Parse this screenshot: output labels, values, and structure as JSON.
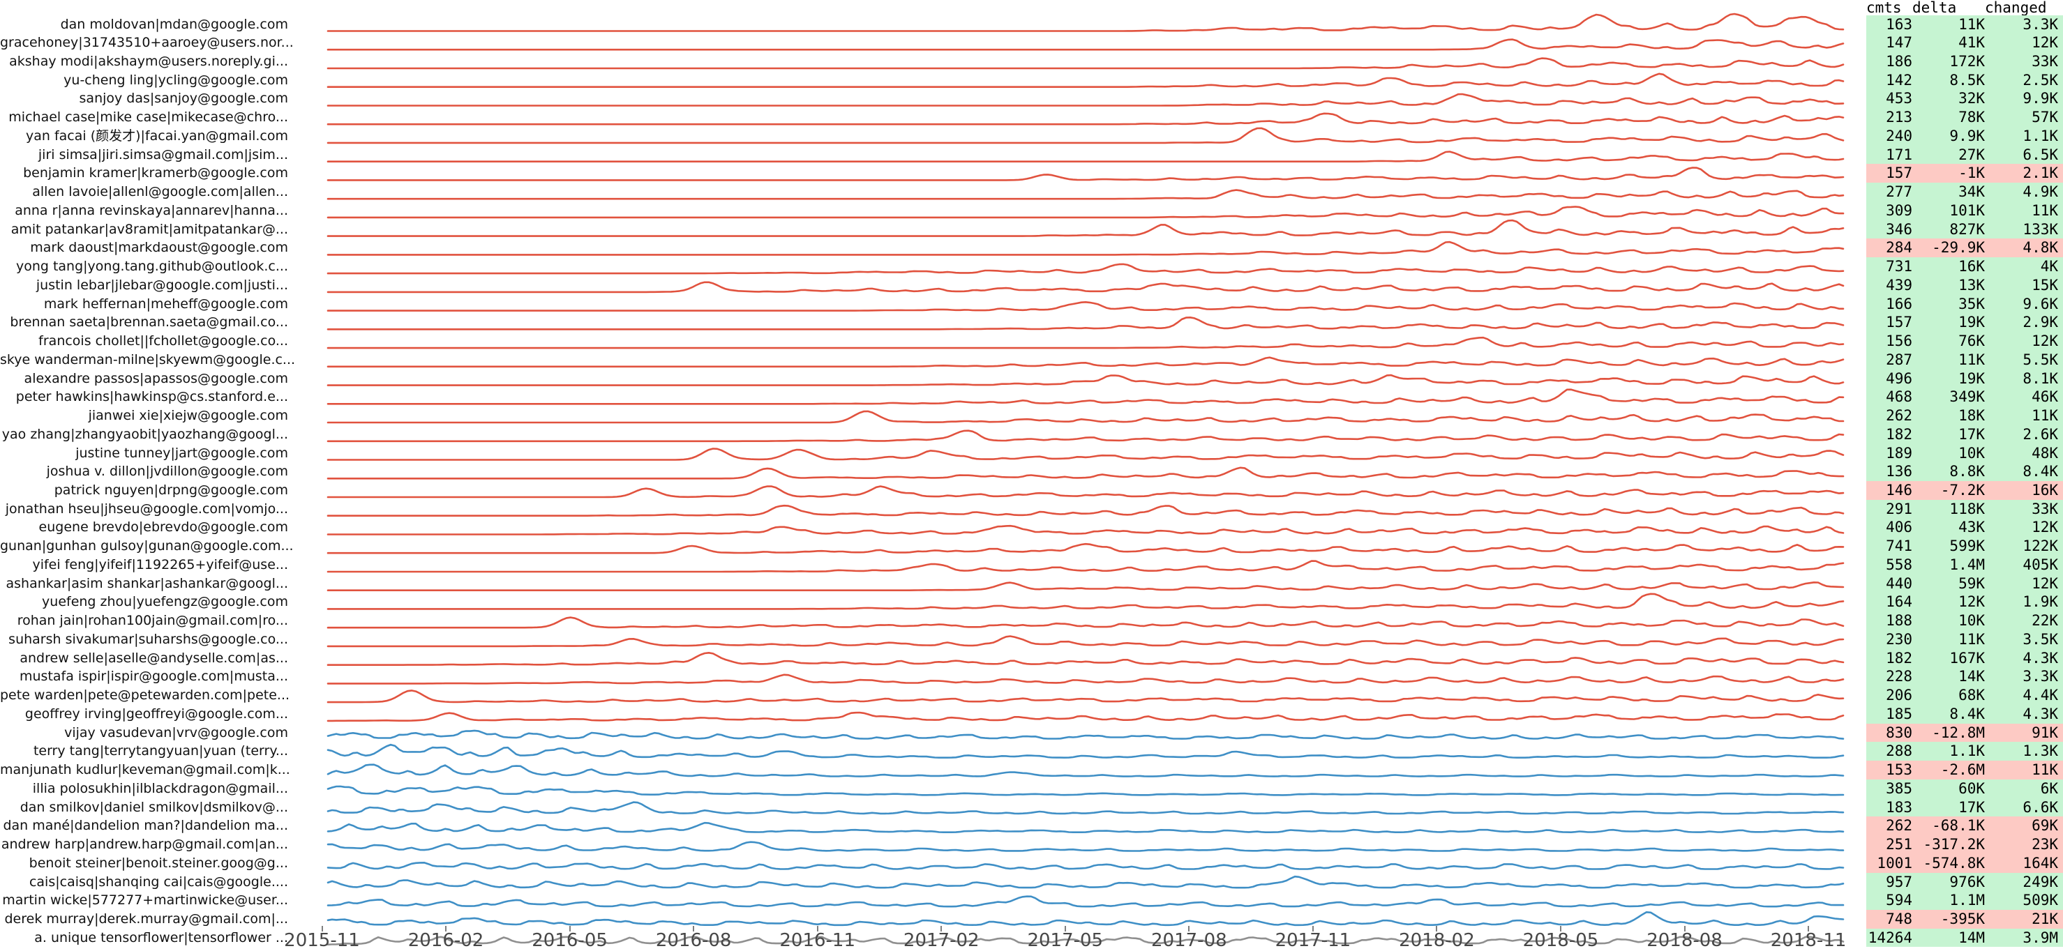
{
  "figure": {
    "description": "Per-contributor commit activity sparklines with totals table",
    "colors": {
      "red_line": "#e1523e",
      "blue_line": "#3f8fc6",
      "gray_line": "#8f8f8f",
      "positive_row_bg": "#c6f4d2",
      "negative_row_bg": "#fdcac4",
      "axis_text": "#474747",
      "name_text": "#111111"
    }
  },
  "chart_data": {
    "type": "ridgeline",
    "title": "",
    "xlabel": "",
    "ylabel": "",
    "legend": "none",
    "grid": false,
    "x_tick_labels": [
      "2015-11",
      "2016-02",
      "2016-05",
      "2016-08",
      "2016-11",
      "2017-02",
      "2017-05",
      "2017-08",
      "2017-11",
      "2018-02",
      "2018-05",
      "2018-08",
      "2018-11"
    ],
    "columns": [
      "cmts",
      "delta",
      "changed"
    ],
    "series": [
      {
        "name": "dan moldovan|mdan@google.com",
        "cmts": "163",
        "delta": "11K",
        "changed": "3.3K",
        "negative": false,
        "line": "red",
        "start": 0.52,
        "amp": 15,
        "late": 0,
        "spikes": [
          [
            0.84,
            14
          ],
          [
            0.925,
            16
          ],
          [
            0.97,
            12
          ]
        ]
      },
      {
        "name": "gracehoney|31743510+aaroey@users.nor...",
        "cmts": "147",
        "delta": "41K",
        "changed": "12K",
        "negative": false,
        "line": "red",
        "start": 0.73,
        "amp": 14,
        "late": 0,
        "spikes": [
          [
            0.78,
            12
          ],
          [
            0.92,
            10
          ]
        ]
      },
      {
        "name": "akshay modi|akshaym@users.noreply.gi...",
        "cmts": "186",
        "delta": "172K",
        "changed": "33K",
        "negative": false,
        "line": "red",
        "start": 0.64,
        "amp": 13,
        "late": 0,
        "spikes": [
          [
            0.8,
            10
          ]
        ]
      },
      {
        "name": "yu-cheng ling|ycling@google.com",
        "cmts": "142",
        "delta": "8.5K",
        "changed": "2.5K",
        "negative": false,
        "line": "red",
        "start": 0.52,
        "amp": 12,
        "late": 0,
        "spikes": [
          [
            0.7,
            10
          ],
          [
            0.88,
            12
          ]
        ]
      },
      {
        "name": "sanjoy das|sanjoy@google.com",
        "cmts": "453",
        "delta": "32K",
        "changed": "9.9K",
        "negative": false,
        "line": "red",
        "start": 0.55,
        "amp": 14,
        "late": 0,
        "spikes": [
          [
            0.75,
            12
          ]
        ]
      },
      {
        "name": "michael case|mike case|mikecase@chro...",
        "cmts": "213",
        "delta": "78K",
        "changed": "57K",
        "negative": false,
        "line": "red",
        "start": 0.52,
        "amp": 13,
        "late": 0,
        "spikes": [
          [
            0.66,
            12
          ]
        ]
      },
      {
        "name": "yan facai (颜发才)|facai.yan@gmail.com",
        "cmts": "240",
        "delta": "9.9K",
        "changed": "1.1K",
        "negative": false,
        "line": "red",
        "start": 0.55,
        "amp": 13,
        "late": 0,
        "spikes": [
          [
            0.615,
            20
          ]
        ]
      },
      {
        "name": "jiri simsa|jiri.simsa@gmail.com|jsim...",
        "cmts": "171",
        "delta": "27K",
        "changed": "6.5K",
        "negative": false,
        "line": "red",
        "start": 0.68,
        "amp": 13,
        "late": 0,
        "spikes": [
          [
            0.74,
            10
          ]
        ]
      },
      {
        "name": "benjamin kramer|kramerb@google.com",
        "cmts": "157",
        "delta": "-1K",
        "changed": "2.1K",
        "negative": true,
        "line": "red",
        "start": 0.47,
        "amp": 10,
        "late": 0,
        "spikes": [
          [
            0.474,
            8
          ],
          [
            0.9,
            12
          ]
        ]
      },
      {
        "name": "allen lavoie|allenl@google.com|allen...",
        "cmts": "277",
        "delta": "34K",
        "changed": "4.9K",
        "negative": false,
        "line": "red",
        "start": 0.52,
        "amp": 13,
        "late": 0,
        "spikes": [
          [
            0.6,
            10
          ]
        ]
      },
      {
        "name": "anna r|anna revinskaya|annarev|hanna...",
        "cmts": "309",
        "delta": "101K",
        "changed": "11K",
        "negative": false,
        "line": "red",
        "start": 0.54,
        "amp": 13,
        "late": 0,
        "spikes": [
          [
            0.82,
            12
          ]
        ]
      },
      {
        "name": "amit patankar|av8ramit|amitpatankar@...",
        "cmts": "346",
        "delta": "827K",
        "changed": "133K",
        "negative": false,
        "line": "red",
        "start": 0.45,
        "amp": 14,
        "late": 0,
        "spikes": [
          [
            0.55,
            12
          ],
          [
            0.78,
            14
          ]
        ]
      },
      {
        "name": "mark daoust|markdaoust@google.com",
        "cmts": "284",
        "delta": "-29.9K",
        "changed": "4.8K",
        "negative": true,
        "line": "red",
        "start": 0.52,
        "amp": 11,
        "late": 0,
        "spikes": [
          [
            0.74,
            16
          ]
        ]
      },
      {
        "name": "yong tang|yong.tang.github@outlook.c...",
        "cmts": "731",
        "delta": "16K",
        "changed": "4K",
        "negative": false,
        "line": "red",
        "start": 0.24,
        "amp": 11,
        "late": 0,
        "spikes": [
          [
            0.52,
            10
          ]
        ]
      },
      {
        "name": "justin lebar|jlebar@google.com|justi...",
        "cmts": "439",
        "delta": "13K",
        "changed": "15K",
        "negative": false,
        "line": "red",
        "start": 0.21,
        "amp": 13,
        "late": 0,
        "spikes": [
          [
            0.25,
            14
          ],
          [
            0.55,
            10
          ]
        ]
      },
      {
        "name": "mark heffernan|meheff@google.com",
        "cmts": "166",
        "delta": "35K",
        "changed": "9.6K",
        "negative": false,
        "line": "red",
        "start": 0.34,
        "amp": 12,
        "late": 0,
        "spikes": [
          [
            0.5,
            10
          ]
        ]
      },
      {
        "name": "brennan saeta|brennan.saeta@gmail.co...",
        "cmts": "157",
        "delta": "19K",
        "changed": "2.9K",
        "negative": false,
        "line": "red",
        "start": 0.4,
        "amp": 12,
        "late": 0,
        "spikes": [
          [
            0.57,
            14
          ]
        ]
      },
      {
        "name": "francois chollet||fchollet@google.co...",
        "cmts": "156",
        "delta": "76K",
        "changed": "12K",
        "negative": false,
        "line": "red",
        "start": 0.52,
        "amp": 12,
        "late": 0,
        "spikes": [
          [
            0.76,
            12
          ]
        ]
      },
      {
        "name": "skye wanderman-milne|skyewm@google.c...",
        "cmts": "287",
        "delta": "11K",
        "changed": "5.5K",
        "negative": false,
        "line": "red",
        "start": 0.36,
        "amp": 13,
        "late": 0,
        "spikes": [
          [
            0.62,
            10
          ]
        ]
      },
      {
        "name": "alexandre passos|apassos@google.com",
        "cmts": "496",
        "delta": "19K",
        "changed": "8.1K",
        "negative": false,
        "line": "red",
        "start": 0.36,
        "amp": 14,
        "late": 0,
        "spikes": [
          [
            0.52,
            12
          ],
          [
            0.7,
            10
          ]
        ]
      },
      {
        "name": "peter hawkins|hawkinsp@cs.stanford.e...",
        "cmts": "468",
        "delta": "349K",
        "changed": "46K",
        "negative": false,
        "line": "red",
        "start": 0.32,
        "amp": 13,
        "late": 0,
        "spikes": [
          [
            0.82,
            16
          ]
        ]
      },
      {
        "name": "jianwei xie|xiejw@google.com",
        "cmts": "262",
        "delta": "18K",
        "changed": "11K",
        "negative": false,
        "line": "red",
        "start": 0.33,
        "amp": 13,
        "late": 0,
        "spikes": [
          [
            0.355,
            16
          ]
        ]
      },
      {
        "name": "yao zhang|zhangyaobit|yaozhang@googl...",
        "cmts": "182",
        "delta": "17K",
        "changed": "2.6K",
        "negative": false,
        "line": "red",
        "start": 0.27,
        "amp": 11,
        "late": 0,
        "spikes": [
          [
            0.42,
            12
          ]
        ]
      },
      {
        "name": "justine tunney|jart@google.com",
        "cmts": "189",
        "delta": "10K",
        "changed": "48K",
        "negative": false,
        "line": "red",
        "start": 0.24,
        "amp": 13,
        "late": 0,
        "spikes": [
          [
            0.255,
            16
          ],
          [
            0.31,
            14
          ],
          [
            0.4,
            10
          ]
        ]
      },
      {
        "name": "joshua v. dillon|jvdillon@google.com",
        "cmts": "136",
        "delta": "8.8K",
        "changed": "8.4K",
        "negative": false,
        "line": "red",
        "start": 0.26,
        "amp": 12,
        "late": 0,
        "spikes": [
          [
            0.29,
            14
          ],
          [
            0.6,
            10
          ]
        ]
      },
      {
        "name": "patrick nguyen|drpng@google.com",
        "cmts": "146",
        "delta": "-7.2K",
        "changed": "16K",
        "negative": true,
        "line": "red",
        "start": 0.19,
        "amp": 12,
        "late": 0,
        "spikes": [
          [
            0.21,
            12
          ],
          [
            0.29,
            14
          ],
          [
            0.365,
            12
          ]
        ]
      },
      {
        "name": "jonathan hseu|jhseu@google.com|vomjo...",
        "cmts": "291",
        "delta": "118K",
        "changed": "33K",
        "negative": false,
        "line": "red",
        "start": 0.155,
        "amp": 12,
        "late": 0,
        "spikes": [
          [
            0.3,
            12
          ],
          [
            0.55,
            10
          ]
        ]
      },
      {
        "name": "eugene brevdo|ebrevdo@google.com",
        "cmts": "406",
        "delta": "43K",
        "changed": "12K",
        "negative": false,
        "line": "red",
        "start": 0.135,
        "amp": 12,
        "late": 0,
        "spikes": [
          [
            0.3,
            10
          ],
          [
            0.45,
            10
          ]
        ]
      },
      {
        "name": "gunan|gunhan gulsoy|gunan@google.com...",
        "cmts": "741",
        "delta": "599K",
        "changed": "122K",
        "negative": false,
        "line": "red",
        "start": 0.22,
        "amp": 13,
        "late": 0,
        "spikes": [
          [
            0.24,
            10
          ],
          [
            0.5,
            12
          ]
        ]
      },
      {
        "name": "yifei feng|yifeif|1192265+yifeif@use...",
        "cmts": "558",
        "delta": "1.4M",
        "changed": "405K",
        "negative": false,
        "line": "red",
        "start": 0.26,
        "amp": 13,
        "late": 0,
        "spikes": [
          [
            0.4,
            10
          ],
          [
            0.65,
            12
          ]
        ]
      },
      {
        "name": "ashankar|asim shankar|ashankar@googl...",
        "cmts": "440",
        "delta": "59K",
        "changed": "12K",
        "negative": false,
        "line": "red",
        "start": 0.38,
        "amp": 12,
        "late": 0,
        "spikes": [
          [
            0.45,
            10
          ]
        ]
      },
      {
        "name": "yuefeng zhou|yuefengz@google.com",
        "cmts": "164",
        "delta": "12K",
        "changed": "1.9K",
        "negative": false,
        "line": "red",
        "start": 0.3,
        "amp": 11,
        "late": 0,
        "spikes": [
          [
            0.875,
            16
          ]
        ]
      },
      {
        "name": "rohan jain|rohan100jain@gmail.com|ro...",
        "cmts": "188",
        "delta": "10K",
        "changed": "22K",
        "negative": false,
        "line": "red",
        "start": 0.13,
        "amp": 12,
        "late": 0,
        "spikes": [
          [
            0.16,
            14
          ]
        ]
      },
      {
        "name": "suharsh sivakumar|suharshs@google.co...",
        "cmts": "230",
        "delta": "11K",
        "changed": "3.5K",
        "negative": false,
        "line": "red",
        "start": 0.12,
        "amp": 12,
        "late": 0,
        "spikes": [
          [
            0.2,
            10
          ],
          [
            0.45,
            10
          ]
        ]
      },
      {
        "name": "andrew selle|aselle@andyselle.com|as...",
        "cmts": "182",
        "delta": "167K",
        "changed": "4.3K",
        "negative": false,
        "line": "red",
        "start": 0.05,
        "amp": 12,
        "late": 0,
        "spikes": [
          [
            0.25,
            16
          ]
        ]
      },
      {
        "name": "mustafa ispir|ispir@google.com|musta...",
        "cmts": "228",
        "delta": "14K",
        "changed": "3.3K",
        "negative": false,
        "line": "red",
        "start": 0.06,
        "amp": 11,
        "late": 0,
        "spikes": [
          [
            0.3,
            10
          ]
        ]
      },
      {
        "name": "pete warden|pete@petewarden.com|pete...",
        "cmts": "206",
        "delta": "68K",
        "changed": "4.4K",
        "negative": false,
        "line": "red",
        "start": 0.01,
        "amp": 11,
        "late": 0,
        "spikes": [
          [
            0.055,
            16
          ]
        ]
      },
      {
        "name": "geoffrey irving|geoffreyi@google.com...",
        "cmts": "185",
        "delta": "8.4K",
        "changed": "4.3K",
        "negative": false,
        "line": "red",
        "start": 0.0,
        "amp": 11,
        "late": 0,
        "spikes": [
          [
            0.08,
            10
          ],
          [
            0.35,
            10
          ]
        ]
      },
      {
        "name": "vijay vasudevan|vrv@google.com",
        "cmts": "830",
        "delta": "-12.8M",
        "changed": "91K",
        "negative": true,
        "line": "blue",
        "start": 0,
        "amp": 14,
        "late": 0.5,
        "spikes": []
      },
      {
        "name": "terry tang|terrytangyuan|yuan (terry...",
        "cmts": "288",
        "delta": "1.1K",
        "changed": "1.3K",
        "negative": false,
        "line": "blue",
        "start": 0,
        "amp": 20,
        "late": 0.22,
        "spikes": [
          [
            0.3,
            8
          ],
          [
            0.6,
            8
          ]
        ]
      },
      {
        "name": "manjunath kudlur|keveman@gmail.com|k...",
        "cmts": "153",
        "delta": "-2.6M",
        "changed": "11K",
        "negative": true,
        "line": "blue",
        "start": 0,
        "amp": 18,
        "late": 0.16,
        "spikes": [
          [
            0.45,
            6
          ]
        ]
      },
      {
        "name": "illia polosukhin|ilblackdragon@gmail...",
        "cmts": "385",
        "delta": "60K",
        "changed": "6K",
        "negative": false,
        "line": "blue",
        "start": 0,
        "amp": 16,
        "late": 0.2,
        "spikes": []
      },
      {
        "name": "dan smilkov|daniel smilkov|dsmilkov@...",
        "cmts": "183",
        "delta": "17K",
        "changed": "6.6K",
        "negative": false,
        "line": "blue",
        "start": 0,
        "amp": 14,
        "late": 0.28,
        "spikes": [
          [
            0.2,
            10
          ]
        ]
      },
      {
        "name": "dan mané|dandelion man?|dandelion ma...",
        "cmts": "262",
        "delta": "-68.1K",
        "changed": "69K",
        "negative": true,
        "line": "blue",
        "start": 0,
        "amp": 13,
        "late": 0.32,
        "spikes": [
          [
            0.25,
            10
          ]
        ]
      },
      {
        "name": "andrew harp|andrew.harp@gmail.com|an...",
        "cmts": "251",
        "delta": "-317.2K",
        "changed": "23K",
        "negative": true,
        "line": "blue",
        "start": 0,
        "amp": 12,
        "late": 0.33,
        "spikes": [
          [
            0.28,
            10
          ]
        ]
      },
      {
        "name": "benoit steiner|benoit.steiner.goog@g...",
        "cmts": "1001",
        "delta": "-574.8K",
        "changed": "164K",
        "negative": true,
        "line": "blue",
        "start": 0,
        "amp": 12,
        "late": 0.7,
        "spikes": []
      },
      {
        "name": "cais|caisq|shanqing cai|cais@google....",
        "cmts": "957",
        "delta": "976K",
        "changed": "249K",
        "negative": false,
        "line": "blue",
        "start": 0,
        "amp": 12,
        "late": 0.75,
        "spikes": [
          [
            0.64,
            12
          ]
        ]
      },
      {
        "name": "martin wicke|577277+martinwicke@user...",
        "cmts": "594",
        "delta": "1.1M",
        "changed": "509K",
        "negative": false,
        "line": "blue",
        "start": 0,
        "amp": 11,
        "late": 0.65,
        "spikes": [
          [
            0.46,
            12
          ],
          [
            0.73,
            10
          ]
        ]
      },
      {
        "name": "derek murray|derek.murray@gmail.com|...",
        "cmts": "748",
        "delta": "-395K",
        "changed": "21K",
        "negative": true,
        "line": "blue",
        "start": 0,
        "amp": 12,
        "late": 0.65,
        "spikes": [
          [
            0.87,
            12
          ],
          [
            0.985,
            10
          ]
        ]
      },
      {
        "name": "a. unique tensorflower|tensorflower ...",
        "cmts": "14264",
        "delta": "14M",
        "changed": "3.9M",
        "negative": false,
        "line": "gray",
        "start": 0,
        "amp": 11,
        "late": 1,
        "spikes": []
      }
    ]
  }
}
